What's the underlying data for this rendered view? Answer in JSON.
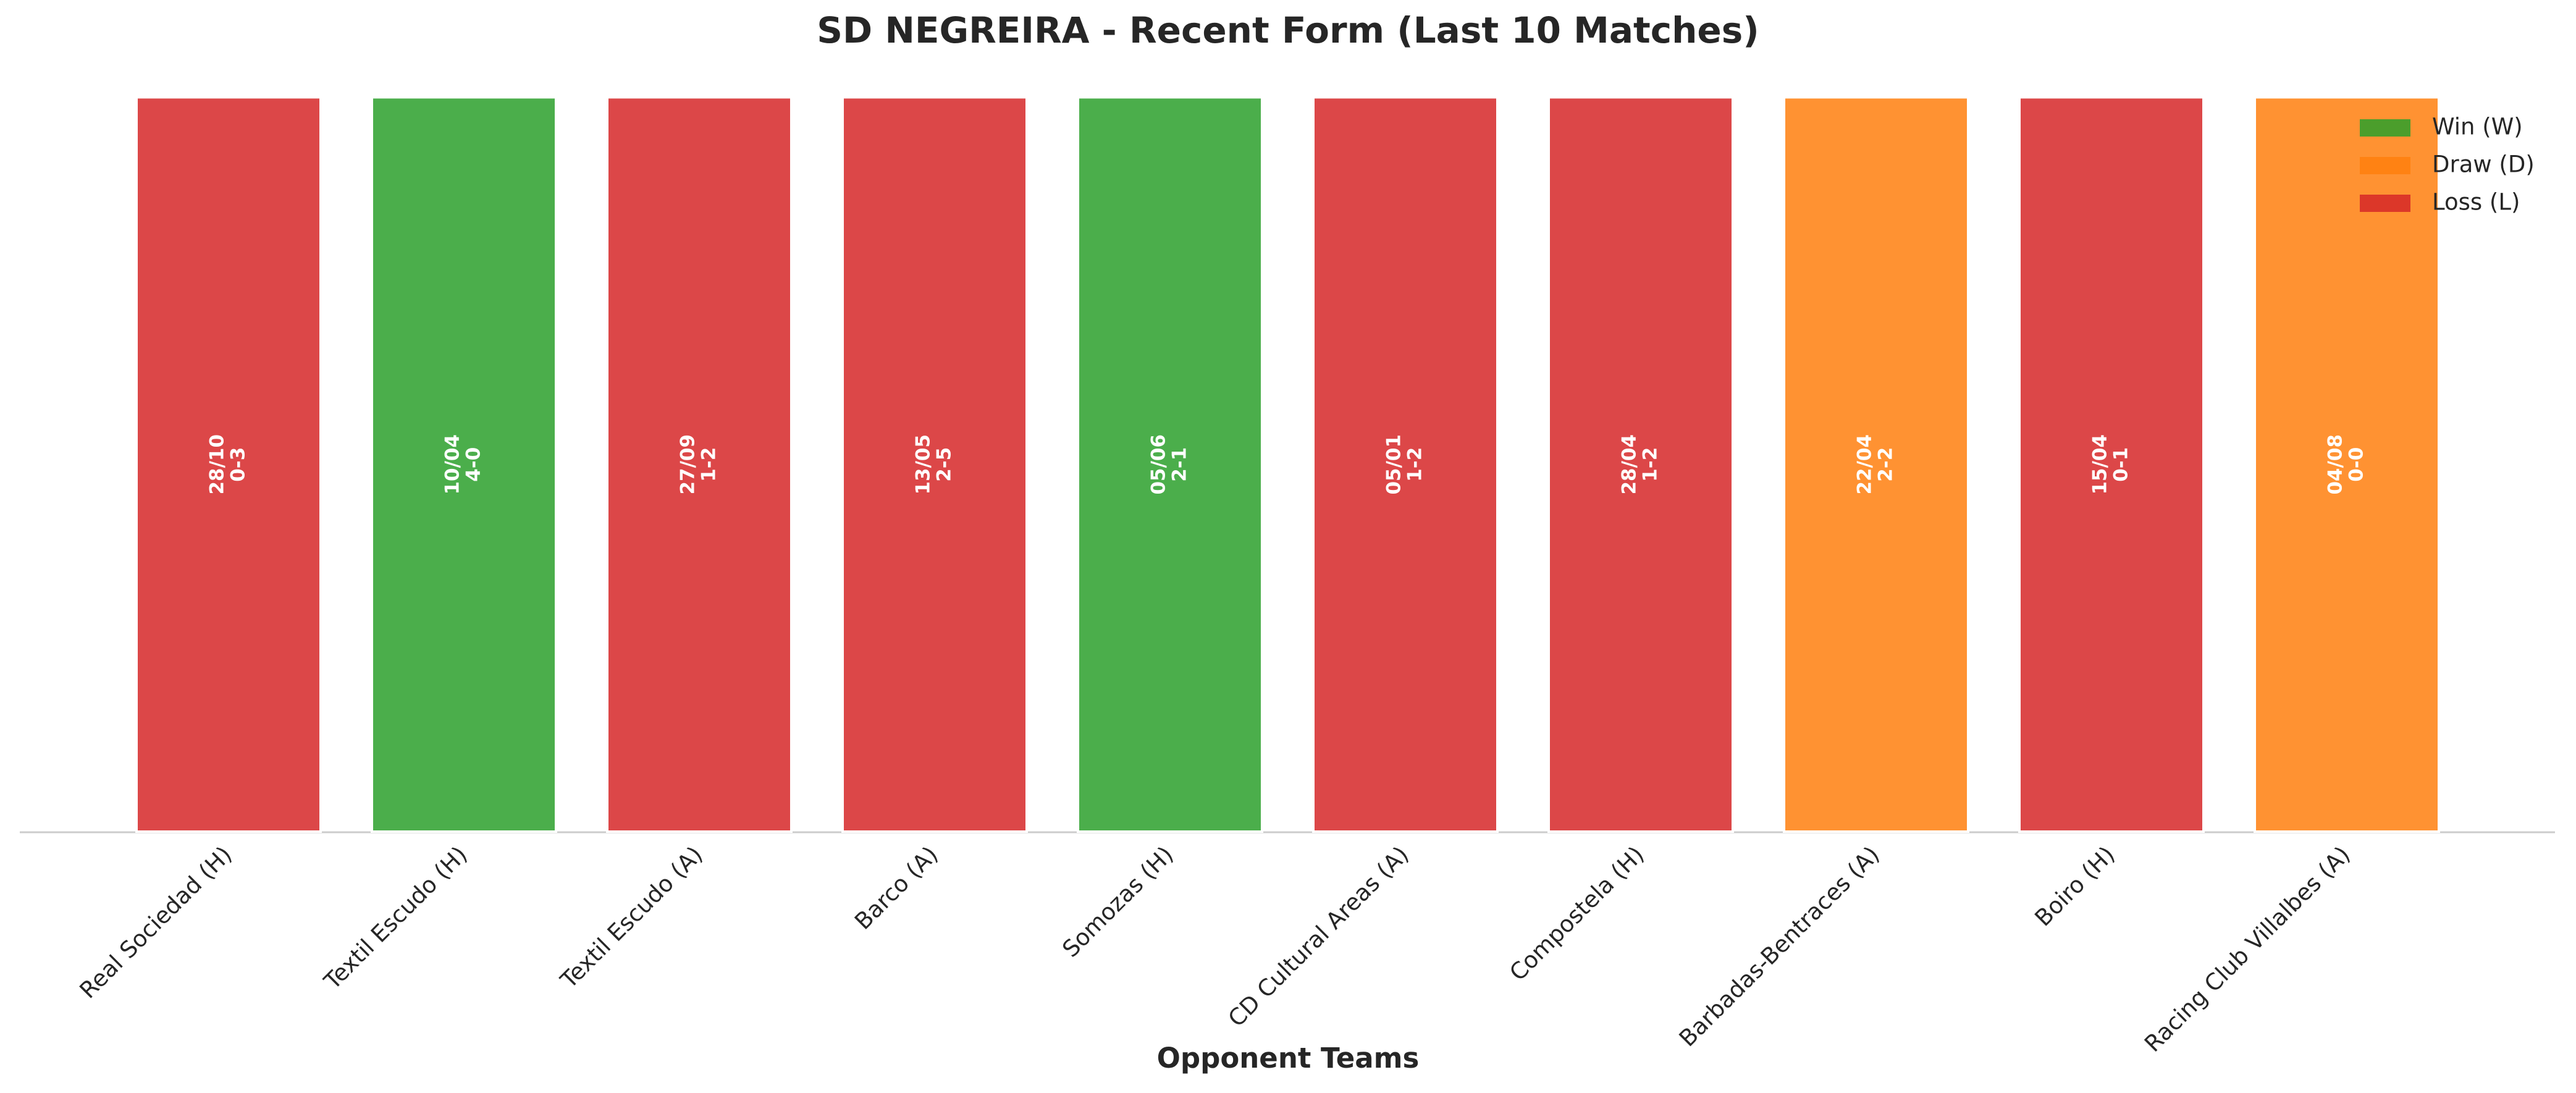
{
  "chart_data": {
    "type": "bar",
    "title": "SD NEGREIRA - Recent Form (Last 10 Matches)",
    "xlabel": "Opponent Teams",
    "categories": [
      "Real Sociedad (H)",
      "Textil Escudo (H)",
      "Textil Escudo (A)",
      "Barco (A)",
      "Somozas (H)",
      "CD Cultural Areas (A)",
      "Compostela (H)",
      "Barbadas-Bentraces (A)",
      "Boiro (H)",
      "Racing Club Villalbes (A)"
    ],
    "values": [
      1,
      1,
      1,
      1,
      1,
      1,
      1,
      1,
      1,
      1
    ],
    "dates": [
      "28/10",
      "10/04",
      "27/09",
      "13/05",
      "05/06",
      "05/01",
      "28/04",
      "22/04",
      "15/04",
      "04/08"
    ],
    "scores": [
      "0-3",
      "4-0",
      "1-2",
      "2-5",
      "2-1",
      "1-2",
      "1-2",
      "2-2",
      "0-1",
      "0-0"
    ],
    "colors": [
      "#d62728",
      "#2ca02c",
      "#d62728",
      "#d62728",
      "#2ca02c",
      "#d62728",
      "#d62728",
      "#ff7f0e",
      "#d62728",
      "#ff7f0e"
    ],
    "legend": [
      {
        "name": "Win (W)",
        "color": "#2ca02c"
      },
      {
        "name": "Draw (D)",
        "color": "#ff7f0e"
      },
      {
        "name": "Loss (L)",
        "color": "#d62728"
      }
    ],
    "legend_loc": "upper right",
    "ylim": [
      0,
      1.05
    ]
  }
}
